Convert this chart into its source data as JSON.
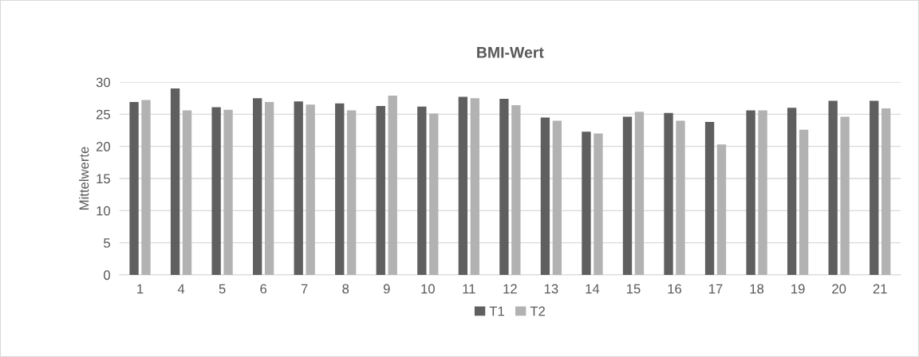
{
  "chart_data": {
    "type": "bar",
    "title": "BMI-Wert",
    "ylabel": "Mittelwerte",
    "categories": [
      "1",
      "4",
      "5",
      "6",
      "7",
      "8",
      "9",
      "10",
      "11",
      "12",
      "13",
      "14",
      "15",
      "16",
      "17",
      "18",
      "19",
      "20",
      "21"
    ],
    "series": [
      {
        "name": "T1",
        "color": "#5f5f5f",
        "values": [
          26.9,
          29.0,
          26.1,
          27.5,
          27.0,
          26.7,
          26.3,
          26.2,
          27.7,
          27.4,
          24.5,
          22.3,
          24.6,
          25.2,
          23.8,
          25.6,
          26.0,
          27.1,
          27.1
        ]
      },
      {
        "name": "T2",
        "color": "#b2b2b2",
        "values": [
          27.2,
          25.6,
          25.7,
          26.9,
          26.5,
          25.6,
          27.9,
          25.1,
          27.5,
          26.4,
          24.0,
          22.0,
          25.4,
          24.0,
          20.3,
          25.6,
          22.6,
          24.6,
          25.9
        ]
      }
    ],
    "ylim": [
      0,
      30
    ],
    "yticks": [
      0,
      5,
      10,
      15,
      20,
      25,
      30
    ],
    "grid": "y",
    "legend": "bottom"
  }
}
